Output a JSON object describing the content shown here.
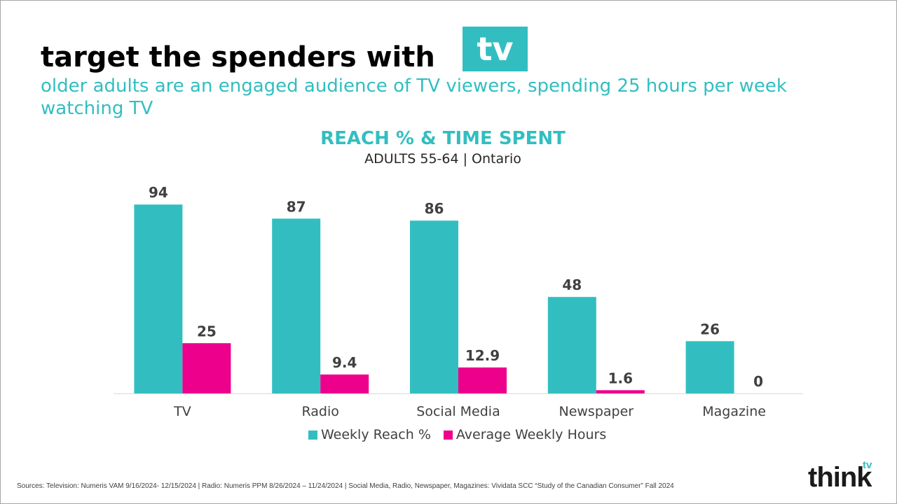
{
  "header": {
    "headline": "target the spenders with",
    "badge": "tv",
    "subhead": "older adults are an engaged audience of TV viewers, spending 25 hours per week watching TV"
  },
  "chart_data": {
    "type": "bar",
    "title": "REACH % & TIME SPENT",
    "subtitle": "ADULTS 55-64 | Ontario",
    "categories": [
      "TV",
      "Radio",
      "Social Media",
      "Newspaper",
      "Magazine"
    ],
    "series": [
      {
        "name": "Weekly Reach %",
        "values": [
          94,
          87,
          86,
          48,
          26
        ],
        "labels": [
          "94",
          "87",
          "86",
          "48",
          "26"
        ],
        "color": "#32bec1"
      },
      {
        "name": "Average Weekly Hours",
        "values": [
          25,
          9.4,
          12.9,
          1.6,
          0
        ],
        "labels": [
          "25",
          "9.4",
          "12.9",
          "1.6",
          "0"
        ],
        "color": "#ec008c"
      }
    ],
    "ylim": [
      0,
      100
    ],
    "grid": false,
    "legend": "bottom"
  },
  "footer": {
    "sources": "Sources: Television:  Numeris VAM 9/16/2024- 12/15/2024 | Radio:  Numeris PPM 8/26/2024 – 11/24/2024  |  Social Media, Radio, Newspaper, Magazines: Vividata SCC “Study of the Canadian Consumer” Fall 2024",
    "logo_word": "think",
    "logo_super": "tv"
  },
  "colors": {
    "accent": "#32bec1",
    "magenta": "#ec008c"
  }
}
